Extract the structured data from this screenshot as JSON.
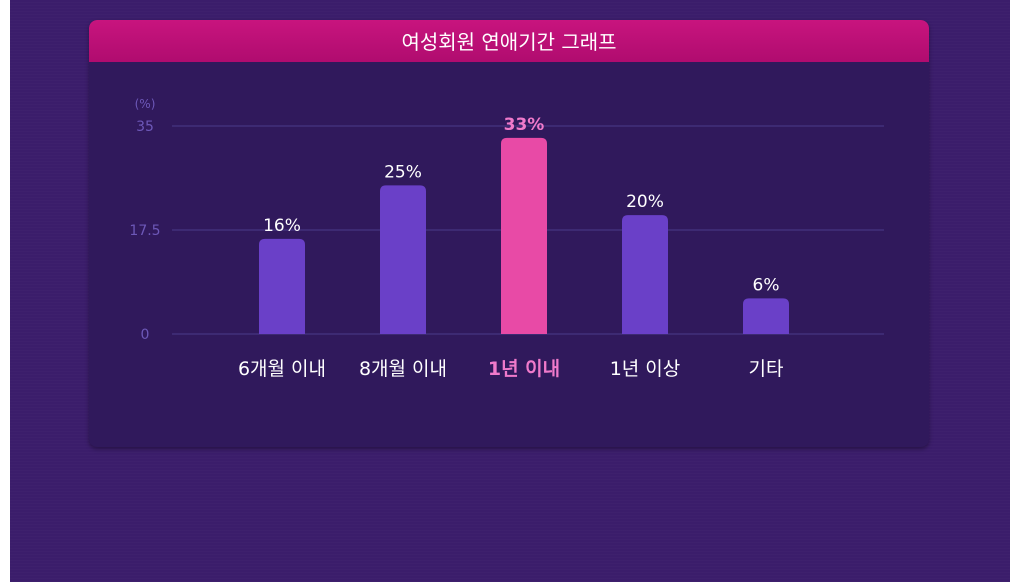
{
  "title": "여성회원 연애기간 그래프",
  "colors": {
    "background": "#3b1d6b",
    "panel": "#30195c",
    "header": "#c20f7a",
    "bar": "#6a40c8",
    "bar_highlight": "#e84aa6",
    "gridline": "#4a3a8a",
    "axis_text": "#6d58b8",
    "label_text": "#ffffff",
    "highlight_text": "#f07acb"
  },
  "chart_data": {
    "type": "bar",
    "title": "여성회원 연애기간 그래프",
    "unit_label": "(%)",
    "categories": [
      "6개월 이내",
      "8개월 이내",
      "1년 이내",
      "1년 이상",
      "기타"
    ],
    "values": [
      16,
      25,
      33,
      20,
      6
    ],
    "value_labels": [
      "16%",
      "25%",
      "33%",
      "20%",
      "6%"
    ],
    "highlight_index": 2,
    "yticks": [
      "35",
      "17.5",
      "0"
    ],
    "ytick_values": [
      35,
      17.5,
      0
    ],
    "ylim": [
      0,
      35
    ],
    "grid": true,
    "xlabel": "",
    "ylabel": ""
  }
}
